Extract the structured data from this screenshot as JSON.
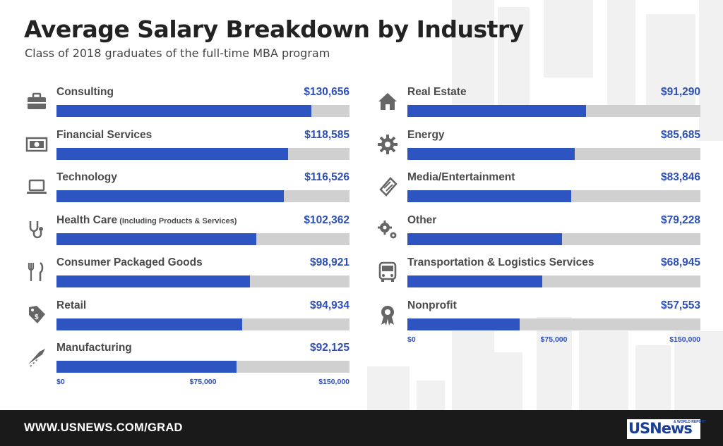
{
  "title": "Average Salary Breakdown by Industry",
  "subtitle": "Class of 2018 graduates of the full-time MBA program",
  "colors": {
    "bar": "#2e54c2",
    "track": "#d0d0d0",
    "value_text": "#2d4fb8",
    "footer_bg": "#1a1a1a"
  },
  "chart_data": [
    {
      "type": "bar",
      "orientation": "horizontal",
      "categories": [
        "Consulting",
        "Financial Services",
        "Technology",
        "Health Care",
        "Consumer Packaged Goods",
        "Retail",
        "Manufacturing"
      ],
      "category_notes": [
        "",
        "",
        "",
        "(Including Products & Services)",
        "",
        "",
        ""
      ],
      "values": [
        130656,
        118585,
        116526,
        102362,
        98921,
        94934,
        92125
      ],
      "value_labels": [
        "$130,656",
        "$118,585",
        "$116,526",
        "$102,362",
        "$98,921",
        "$94,934",
        "$92,125"
      ],
      "icons": [
        "briefcase-icon",
        "money-icon",
        "laptop-icon",
        "stethoscope-icon",
        "fork-knife-icon",
        "price-tag-icon",
        "saw-icon"
      ],
      "xlim": [
        0,
        150000
      ],
      "tick_values": [
        0,
        75000,
        150000
      ],
      "tick_labels": [
        "$0",
        "$75,000",
        "$150,000"
      ],
      "grid": false
    },
    {
      "type": "bar",
      "orientation": "horizontal",
      "categories": [
        "Real Estate",
        "Energy",
        "Media/Entertainment",
        "Other",
        "Transportation & Logistics Services",
        "Nonprofit"
      ],
      "category_notes": [
        "",
        "",
        "",
        "",
        "",
        ""
      ],
      "values": [
        91290,
        85685,
        83846,
        79228,
        68945,
        57553
      ],
      "value_labels": [
        "$91,290",
        "$85,685",
        "$83,846",
        "$79,228",
        "$68,945",
        "$57,553"
      ],
      "icons": [
        "house-icon",
        "gear-icon",
        "ticket-icon",
        "gears-icon",
        "bus-icon",
        "award-ribbon-icon"
      ],
      "xlim": [
        0,
        150000
      ],
      "tick_values": [
        0,
        75000,
        150000
      ],
      "tick_labels": [
        "$0",
        "$75,000",
        "$150,000"
      ],
      "grid": false
    }
  ],
  "footer": {
    "url": "WWW.USNEWS.COM/GRAD",
    "logo_text": "USNews",
    "logo_tagline": "& WORLD REPORT"
  }
}
